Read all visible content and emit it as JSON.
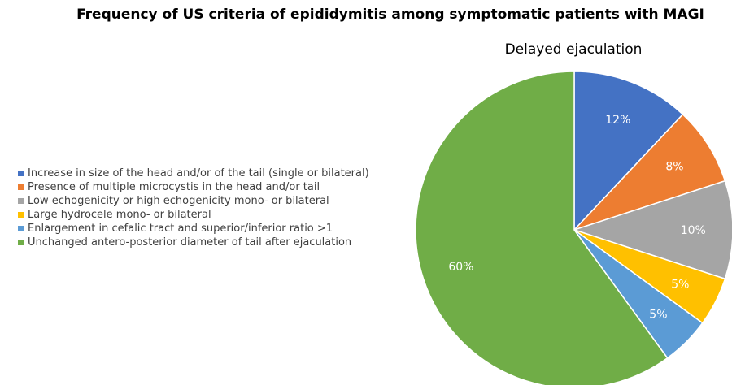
{
  "title": "Frequency of US criteria of epididymitis among symptomatic patients with MAGI",
  "chart_data": {
    "type": "pie",
    "title": "Delayed ejaculation",
    "legend_position": "left",
    "slices": [
      {
        "label": "Increase in size of the head and/or of the tail (single or bilateral)",
        "value": 12,
        "display": "12%",
        "color": "#4472C4"
      },
      {
        "label": "Presence of multiple microcystis in the head and/or tail",
        "value": 8,
        "display": "8%",
        "color": "#ED7D31"
      },
      {
        "label": "Low echogenicity or high echogenicity mono- or bilateral",
        "value": 10,
        "display": "10%",
        "color": "#A5A5A5"
      },
      {
        "label": "Large hydrocele mono- or bilateral",
        "value": 5,
        "display": "5%",
        "color": "#FFC000"
      },
      {
        "label": "Enlargement in cefalic tract and superior/inferior ratio >1",
        "value": 5,
        "display": "5%",
        "color": "#5B9BD5"
      },
      {
        "label": "Unchanged antero-posterior diameter of tail after ejaculation",
        "value": 60,
        "display": "60%",
        "color": "#70AD47"
      }
    ]
  }
}
